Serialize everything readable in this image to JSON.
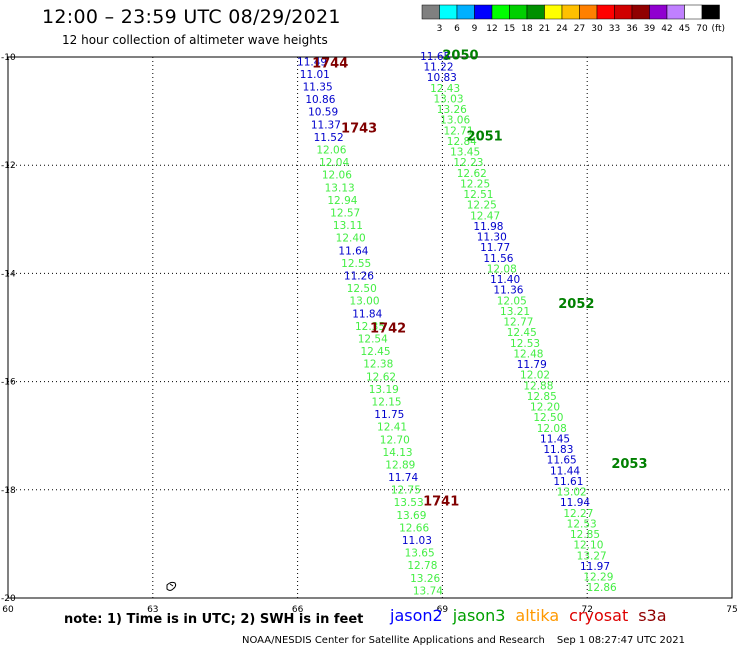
{
  "header": {
    "title": "12:00 – 23:59 UTC 08/29/2021",
    "subtitle": "12 hour collection of altimeter wave heights"
  },
  "scale": {
    "colors": [
      "#808080",
      "#00ffff",
      "#00b0ff",
      "#0000ff",
      "#00ff00",
      "#00d000",
      "#009000",
      "#ffff00",
      "#ffc000",
      "#ff8000",
      "#ff0000",
      "#d00000",
      "#900000",
      "#9000d0",
      "#c080ff",
      "#ffffff",
      "#000000"
    ],
    "labels": [
      "3",
      "6",
      "9",
      "12",
      "15",
      "18",
      "21",
      "24",
      "27",
      "30",
      "33",
      "36",
      "39",
      "42",
      "45",
      "70"
    ],
    "unit": "(ft)"
  },
  "axes": {
    "lon_ticks": [
      "60",
      "63",
      "66",
      "69",
      "72",
      "75"
    ],
    "lat_ticks": [
      "-10",
      "-12",
      "-14",
      "-16",
      "-18",
      "-20"
    ]
  },
  "chart_data": {
    "type": "scatter",
    "xlim": [
      60,
      75
    ],
    "ylim": [
      -20,
      -10
    ],
    "grid": true,
    "passes": [
      {
        "id": "1744",
        "color": "#800000",
        "lon": 66.3,
        "lat": -10.1
      },
      {
        "id": "1743",
        "color": "#800000",
        "lon": 66.9,
        "lat": -11.3
      },
      {
        "id": "1742",
        "color": "#800000",
        "lon": 67.5,
        "lat": -15.0
      },
      {
        "id": "1741",
        "color": "#800000",
        "lon": 68.6,
        "lat": -18.2
      },
      {
        "id": "2050",
        "color": "#008000",
        "lon": 69.0,
        "lat": -9.95
      },
      {
        "id": "2051",
        "color": "#008000",
        "lon": 69.5,
        "lat": -11.45
      },
      {
        "id": "2052",
        "color": "#008000",
        "lon": 71.4,
        "lat": -14.55
      },
      {
        "id": "2053",
        "color": "#008000",
        "lon": 72.5,
        "lat": -17.5
      }
    ],
    "tracks": [
      {
        "lon_start": 66.3,
        "lat_start": -10.08,
        "lon_end": 68.7,
        "lat_end": -19.86,
        "points": [
          {
            "v": "11.49",
            "c": "b"
          },
          {
            "v": "11.01",
            "c": "b"
          },
          {
            "v": "11.35",
            "c": "b"
          },
          {
            "v": "10.86",
            "c": "b"
          },
          {
            "v": "10.59",
            "c": "b"
          },
          {
            "v": "11.37",
            "c": "b"
          },
          {
            "v": "11.52",
            "c": "b"
          },
          {
            "v": "12.06",
            "c": "g"
          },
          {
            "v": "12.04",
            "c": "g"
          },
          {
            "v": "12.06",
            "c": "g"
          },
          {
            "v": "13.13",
            "c": "g"
          },
          {
            "v": "12.94",
            "c": "g"
          },
          {
            "v": "12.57",
            "c": "g"
          },
          {
            "v": "13.11",
            "c": "g"
          },
          {
            "v": "12.40",
            "c": "g"
          },
          {
            "v": "11.64",
            "c": "b"
          },
          {
            "v": "12.55",
            "c": "g"
          },
          {
            "v": "11.26",
            "c": "b"
          },
          {
            "v": "12.50",
            "c": "g"
          },
          {
            "v": "13.00",
            "c": "g"
          },
          {
            "v": "11.84",
            "c": "b"
          },
          {
            "v": "12.35",
            "c": "g"
          },
          {
            "v": "12.54",
            "c": "g"
          },
          {
            "v": "12.45",
            "c": "g"
          },
          {
            "v": "12.38",
            "c": "g"
          },
          {
            "v": "12.62",
            "c": "g"
          },
          {
            "v": "13.19",
            "c": "g"
          },
          {
            "v": "12.15",
            "c": "g"
          },
          {
            "v": "11.75",
            "c": "b"
          },
          {
            "v": "12.41",
            "c": "g"
          },
          {
            "v": "12.70",
            "c": "g"
          },
          {
            "v": "14.13",
            "c": "g"
          },
          {
            "v": "12.89",
            "c": "g"
          },
          {
            "v": "11.74",
            "c": "b"
          },
          {
            "v": "12.75",
            "c": "g"
          },
          {
            "v": "13.53",
            "c": "g"
          },
          {
            "v": "13.69",
            "c": "g"
          },
          {
            "v": "12.66",
            "c": "g"
          },
          {
            "v": "11.03",
            "c": "b"
          },
          {
            "v": "13.65",
            "c": "g"
          },
          {
            "v": "12.78",
            "c": "g"
          },
          {
            "v": "13.26",
            "c": "g"
          },
          {
            "v": "13.74",
            "c": "g"
          }
        ]
      },
      {
        "lon_start": 68.85,
        "lat_start": -9.98,
        "lon_end": 72.3,
        "lat_end": -19.8,
        "points": [
          {
            "v": "11.65",
            "c": "b"
          },
          {
            "v": "11.22",
            "c": "b"
          },
          {
            "v": "10.83",
            "c": "b"
          },
          {
            "v": "12.43",
            "c": "g"
          },
          {
            "v": "13.03",
            "c": "g"
          },
          {
            "v": "13.26",
            "c": "g"
          },
          {
            "v": "13.06",
            "c": "g"
          },
          {
            "v": "12.71",
            "c": "g"
          },
          {
            "v": "12.84",
            "c": "g"
          },
          {
            "v": "13.45",
            "c": "g"
          },
          {
            "v": "12.23",
            "c": "g"
          },
          {
            "v": "12.62",
            "c": "g"
          },
          {
            "v": "12.25",
            "c": "g"
          },
          {
            "v": "12.51",
            "c": "g"
          },
          {
            "v": "12.25",
            "c": "g"
          },
          {
            "v": "12.47",
            "c": "g"
          },
          {
            "v": "11.98",
            "c": "b"
          },
          {
            "v": "11.30",
            "c": "b"
          },
          {
            "v": "11.77",
            "c": "b"
          },
          {
            "v": "11.56",
            "c": "b"
          },
          {
            "v": "12.08",
            "c": "g"
          },
          {
            "v": "11.40",
            "c": "b"
          },
          {
            "v": "11.36",
            "c": "b"
          },
          {
            "v": "12.05",
            "c": "g"
          },
          {
            "v": "13.21",
            "c": "g"
          },
          {
            "v": "12.77",
            "c": "g"
          },
          {
            "v": "12.45",
            "c": "g"
          },
          {
            "v": "12.53",
            "c": "g"
          },
          {
            "v": "12.48",
            "c": "g"
          },
          {
            "v": "11.79",
            "c": "b"
          },
          {
            "v": "12.02",
            "c": "g"
          },
          {
            "v": "12.88",
            "c": "g"
          },
          {
            "v": "12.85",
            "c": "g"
          },
          {
            "v": "12.20",
            "c": "g"
          },
          {
            "v": "12.50",
            "c": "g"
          },
          {
            "v": "12.08",
            "c": "g"
          },
          {
            "v": "11.45",
            "c": "b"
          },
          {
            "v": "11.83",
            "c": "b"
          },
          {
            "v": "11.65",
            "c": "b"
          },
          {
            "v": "11.44",
            "c": "b"
          },
          {
            "v": "11.61",
            "c": "b"
          },
          {
            "v": "13.02",
            "c": "g"
          },
          {
            "v": "11.94",
            "c": "b"
          },
          {
            "v": "12.27",
            "c": "g"
          },
          {
            "v": "12.53",
            "c": "g"
          },
          {
            "v": "12.85",
            "c": "g"
          },
          {
            "v": "12.10",
            "c": "g"
          },
          {
            "v": "13.27",
            "c": "g"
          },
          {
            "v": "11.97",
            "c": "b"
          },
          {
            "v": "12.29",
            "c": "g"
          },
          {
            "v": "12.86",
            "c": "g"
          }
        ]
      }
    ],
    "point_colors": {
      "b": "#0000cc",
      "g": "#44ee44"
    }
  },
  "footer": {
    "note": "note:  1) Time is in UTC; 2) SWH is in feet",
    "satellites": [
      {
        "name": "jason2",
        "color": "#0000ff"
      },
      {
        "name": "jason3",
        "color": "#00a000"
      },
      {
        "name": "altika",
        "color": "#ff9900"
      },
      {
        "name": "cryosat",
        "color": "#dd0000"
      },
      {
        "name": "s3a",
        "color": "#900000"
      }
    ],
    "credit": "NOAA/NESDIS Center for Satellite Applications and Research",
    "timestamp": "Sep  1 08:27:47 UTC 2021"
  }
}
